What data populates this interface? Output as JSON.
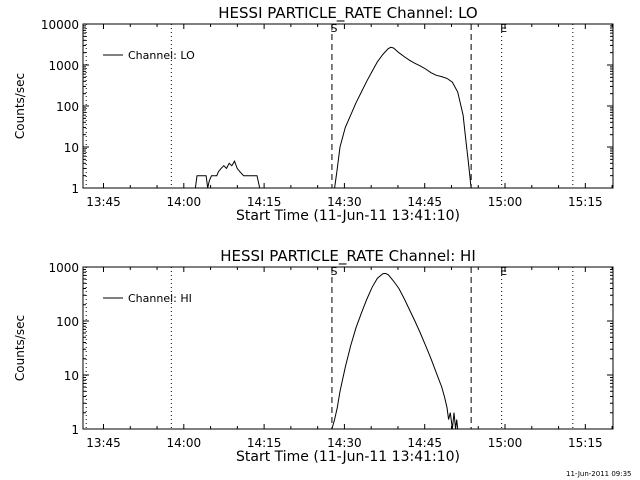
{
  "footer": {
    "timestamp": "11-Jun-2011 09:35"
  },
  "chart_data": [
    {
      "type": "line",
      "title": "HESSI PARTICLE_RATE Channel: LO",
      "xlabel": "Start Time (11-Jun-11 13:41:10)",
      "ylabel": "Counts/sec",
      "xlim_minutes_from_start": [
        0,
        99
      ],
      "ylim": [
        1,
        10000
      ],
      "yscale": "log",
      "x_ticks": [
        {
          "label": "13:45",
          "min": 3.83
        },
        {
          "label": "14:00",
          "min": 18.83
        },
        {
          "label": "14:15",
          "min": 33.83
        },
        {
          "label": "14:30",
          "min": 48.83
        },
        {
          "label": "14:45",
          "min": 63.83
        },
        {
          "label": "15:00",
          "min": 78.83
        },
        {
          "label": "15:15",
          "min": 93.83
        }
      ],
      "y_ticks": [
        {
          "label": "1",
          "value": 1
        },
        {
          "label": "10",
          "value": 10
        },
        {
          "label": "100",
          "value": 100
        },
        {
          "label": "1000",
          "value": 1000
        },
        {
          "label": "10000",
          "value": 10000
        }
      ],
      "markers": [
        {
          "label": "",
          "min": 16.5,
          "style": "dotted"
        },
        {
          "label": "S",
          "min": 46.5,
          "style": "dashed"
        },
        {
          "label": "",
          "min": 72.5,
          "style": "dashed"
        },
        {
          "label": "E",
          "min": 78.2,
          "style": "dotted"
        },
        {
          "label": "",
          "min": 91.5,
          "style": "dotted"
        },
        {
          "label": "",
          "min": 0.6,
          "style": "dotted"
        }
      ],
      "legend": {
        "position": "top-left",
        "label": "Channel: LO"
      },
      "series": [
        {
          "name": "Channel: LO",
          "points": [
            [
              21.0,
              1
            ],
            [
              21.3,
              2
            ],
            [
              23.0,
              2
            ],
            [
              23.3,
              1
            ],
            [
              23.6,
              1.5
            ],
            [
              24.0,
              2
            ],
            [
              25.0,
              2
            ],
            [
              25.3,
              2.5
            ],
            [
              25.8,
              3
            ],
            [
              26.3,
              3.5
            ],
            [
              26.8,
              3
            ],
            [
              27.3,
              4
            ],
            [
              27.8,
              3.5
            ],
            [
              28.3,
              4.5
            ],
            [
              28.8,
              3
            ],
            [
              29.3,
              2.5
            ],
            [
              30.0,
              2
            ],
            [
              32.5,
              2
            ],
            [
              33.0,
              1
            ],
            [
              47.0,
              1
            ],
            [
              47.5,
              3
            ],
            [
              48.0,
              10
            ],
            [
              49.0,
              30
            ],
            [
              50.0,
              60
            ],
            [
              51.0,
              120
            ],
            [
              52.0,
              220
            ],
            [
              53.0,
              400
            ],
            [
              54.0,
              700
            ],
            [
              55.0,
              1200
            ],
            [
              56.0,
              1800
            ],
            [
              57.0,
              2500
            ],
            [
              57.5,
              2700
            ],
            [
              58.0,
              2600
            ],
            [
              59.0,
              2000
            ],
            [
              60.0,
              1600
            ],
            [
              61.0,
              1300
            ],
            [
              62.0,
              1100
            ],
            [
              63.0,
              950
            ],
            [
              64.0,
              800
            ],
            [
              65.0,
              650
            ],
            [
              66.0,
              560
            ],
            [
              67.0,
              520
            ],
            [
              68.0,
              470
            ],
            [
              69.0,
              380
            ],
            [
              70.0,
              220
            ],
            [
              71.0,
              60
            ],
            [
              71.5,
              15
            ],
            [
              72.0,
              4
            ],
            [
              72.5,
              1
            ]
          ]
        }
      ]
    },
    {
      "type": "line",
      "title": "HESSI PARTICLE_RATE Channel: HI",
      "xlabel": "Start Time (11-Jun-11 13:41:10)",
      "ylabel": "Counts/sec",
      "xlim_minutes_from_start": [
        0,
        99
      ],
      "ylim": [
        1,
        1000
      ],
      "yscale": "log",
      "x_ticks": [
        {
          "label": "13:45",
          "min": 3.83
        },
        {
          "label": "14:00",
          "min": 18.83
        },
        {
          "label": "14:15",
          "min": 33.83
        },
        {
          "label": "14:30",
          "min": 48.83
        },
        {
          "label": "14:45",
          "min": 63.83
        },
        {
          "label": "15:00",
          "min": 78.83
        },
        {
          "label": "15:15",
          "min": 93.83
        }
      ],
      "y_ticks": [
        {
          "label": "1",
          "value": 1
        },
        {
          "label": "10",
          "value": 10
        },
        {
          "label": "100",
          "value": 100
        },
        {
          "label": "1000",
          "value": 1000
        }
      ],
      "markers": [
        {
          "label": "",
          "min": 16.5,
          "style": "dotted"
        },
        {
          "label": "S",
          "min": 46.5,
          "style": "dashed"
        },
        {
          "label": "",
          "min": 72.5,
          "style": "dashed"
        },
        {
          "label": "E",
          "min": 78.2,
          "style": "dotted"
        },
        {
          "label": "",
          "min": 91.5,
          "style": "dotted"
        },
        {
          "label": "",
          "min": 0.6,
          "style": "dotted"
        }
      ],
      "legend": {
        "position": "top-left",
        "label": "Channel: HI"
      },
      "series": [
        {
          "name": "Channel: HI",
          "points": [
            [
              46.5,
              1
            ],
            [
              47.0,
              1.5
            ],
            [
              47.5,
              2.5
            ],
            [
              48.0,
              5
            ],
            [
              49.0,
              14
            ],
            [
              50.0,
              35
            ],
            [
              51.0,
              75
            ],
            [
              52.0,
              140
            ],
            [
              53.0,
              250
            ],
            [
              54.0,
              420
            ],
            [
              55.0,
              620
            ],
            [
              56.0,
              750
            ],
            [
              56.5,
              760
            ],
            [
              57.0,
              720
            ],
            [
              58.0,
              550
            ],
            [
              59.0,
              400
            ],
            [
              60.0,
              260
            ],
            [
              61.0,
              160
            ],
            [
              62.0,
              100
            ],
            [
              63.0,
              60
            ],
            [
              64.0,
              35
            ],
            [
              65.0,
              20
            ],
            [
              66.0,
              11
            ],
            [
              67.0,
              6
            ],
            [
              67.5,
              4
            ],
            [
              68.0,
              2.5
            ],
            [
              68.3,
              1.5
            ],
            [
              68.6,
              2
            ],
            [
              69.0,
              1
            ],
            [
              69.3,
              2
            ],
            [
              69.6,
              1
            ],
            [
              69.8,
              1.5
            ],
            [
              70.0,
              1
            ]
          ]
        }
      ]
    }
  ]
}
